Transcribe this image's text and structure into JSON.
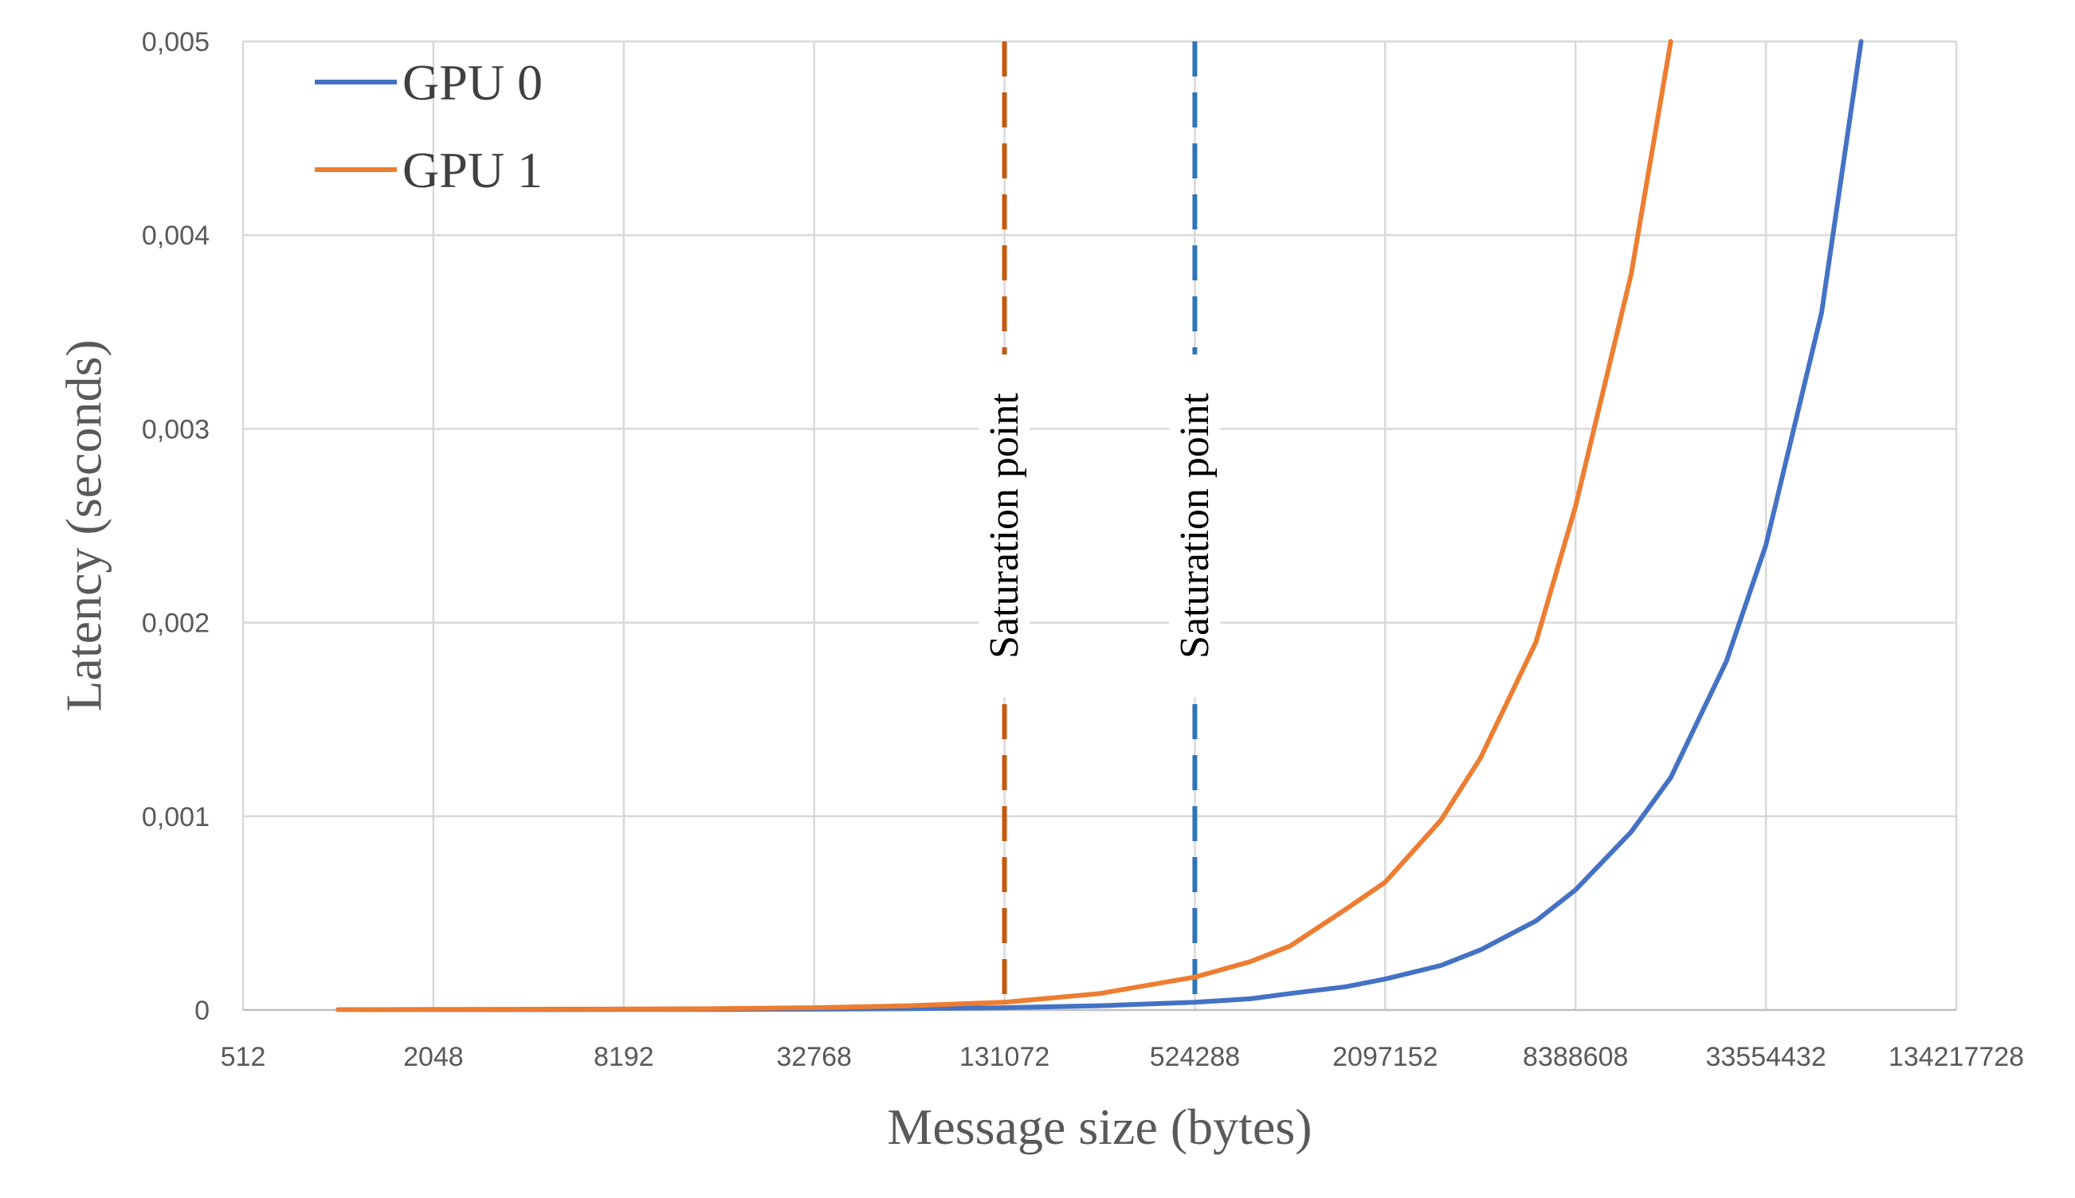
{
  "chart_data": {
    "type": "line",
    "title": "",
    "xlabel": "Message size (bytes)",
    "ylabel": "Latency (seconds)",
    "x_scale": "log2",
    "x_ticks": [
      512,
      2048,
      8192,
      32768,
      131072,
      524288,
      2097152,
      8388608,
      33554432,
      134217728
    ],
    "x_tick_labels": [
      "512",
      "2048",
      "8192",
      "32768",
      "131072",
      "524288",
      "2097152",
      "8388608",
      "33554432",
      "134217728"
    ],
    "xlim": [
      512,
      134217728
    ],
    "ylim": [
      0,
      0.005
    ],
    "y_ticks": [
      0,
      0.001,
      0.002,
      0.003,
      0.004,
      0.005
    ],
    "y_tick_labels": [
      "0",
      "0,001",
      "0,002",
      "0,003",
      "0,004",
      "0,005"
    ],
    "grid": true,
    "legend_position": "top-left",
    "series": [
      {
        "name": "GPU 0",
        "color": "#4472C4",
        "points": [
          [
            1024,
            2e-06
          ],
          [
            2048,
            2e-06
          ],
          [
            4096,
            2e-06
          ],
          [
            8192,
            3e-06
          ],
          [
            16384,
            3e-06
          ],
          [
            32768,
            4e-06
          ],
          [
            65536,
            7e-06
          ],
          [
            131072,
            1.2e-05
          ],
          [
            262144,
            2.2e-05
          ],
          [
            524288,
            4e-05
          ],
          [
            786432,
            5.8e-05
          ],
          [
            1048576,
            8.5e-05
          ],
          [
            1572864,
            0.00012
          ],
          [
            2097152,
            0.00016
          ],
          [
            3145728,
            0.00023
          ],
          [
            4194304,
            0.00031
          ],
          [
            6291456,
            0.00046
          ],
          [
            8388608,
            0.00062
          ],
          [
            12582912,
            0.00092
          ],
          [
            16777216,
            0.0012
          ],
          [
            25165824,
            0.0018
          ],
          [
            33554432,
            0.0024
          ],
          [
            50331648,
            0.0036
          ],
          [
            67108864,
            0.005
          ]
        ]
      },
      {
        "name": "GPU 1",
        "color": "#ED7D31",
        "points": [
          [
            1024,
            2e-06
          ],
          [
            2048,
            3e-06
          ],
          [
            4096,
            4e-06
          ],
          [
            8192,
            5e-06
          ],
          [
            16384,
            7e-06
          ],
          [
            32768,
            1.2e-05
          ],
          [
            65536,
            2.2e-05
          ],
          [
            131072,
            4e-05
          ],
          [
            262144,
            8.5e-05
          ],
          [
            524288,
            0.00017
          ],
          [
            786432,
            0.00025
          ],
          [
            1048576,
            0.00033
          ],
          [
            1572864,
            0.00052
          ],
          [
            2097152,
            0.00066
          ],
          [
            3145728,
            0.00098
          ],
          [
            4194304,
            0.0013
          ],
          [
            6291456,
            0.0019
          ],
          [
            8388608,
            0.0026
          ],
          [
            12582912,
            0.0038
          ],
          [
            16777216,
            0.005
          ]
        ]
      }
    ],
    "annotations": [
      {
        "label": "Saturation point",
        "x": 131072,
        "color": "#C55A11"
      },
      {
        "label": "Saturation point",
        "x": 524288,
        "color": "#2E75B6"
      }
    ]
  }
}
